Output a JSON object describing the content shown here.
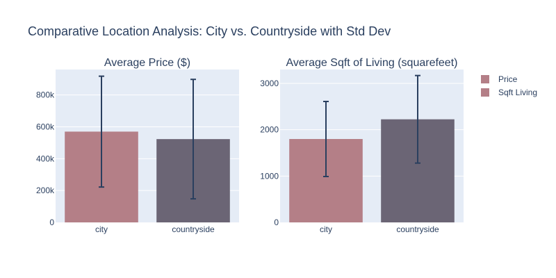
{
  "title": "Comparative Location Analysis: City vs. Countryside with Std Dev",
  "colors": {
    "city": "#b47f87",
    "countryside": "#6b6575",
    "error_bar": "#2a3f5f",
    "plot_bg": "#e5ecf6",
    "text": "#2a3f5f"
  },
  "legend": {
    "items": [
      {
        "label": "Price",
        "color": "#b47f87"
      },
      {
        "label": "Sqft Living",
        "color": "#b47f87"
      }
    ],
    "placement": "right"
  },
  "chart_data": [
    {
      "type": "bar",
      "title": "Average Price ($)",
      "categories": [
        "city",
        "countryside"
      ],
      "values": [
        570000,
        523000
      ],
      "error": [
        348000,
        375000
      ],
      "ylim": [
        0,
        960000
      ],
      "yticks": [
        0,
        200000,
        400000,
        600000,
        800000
      ],
      "ytick_labels": [
        "0",
        "200k",
        "400k",
        "600k",
        "800k"
      ],
      "grid": true
    },
    {
      "type": "bar",
      "title": "Average Sqft of Living (squarefeet)",
      "categories": [
        "city",
        "countryside"
      ],
      "values": [
        1800,
        2225
      ],
      "error": [
        810,
        945
      ],
      "ylim": [
        0,
        3300
      ],
      "yticks": [
        0,
        1000,
        2000,
        3000
      ],
      "ytick_labels": [
        "0",
        "1000",
        "2000",
        "3000"
      ],
      "grid": true
    }
  ]
}
